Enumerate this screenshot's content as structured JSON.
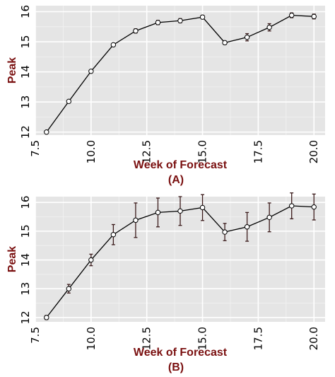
{
  "style": {
    "panel_background": "#e5e5e5",
    "grid_major": "#ffffff",
    "grid_minor": "#f2f2f2",
    "line_color": "#000000",
    "point_fill": "#ffffff",
    "errorbar_color": "#3a1a1a",
    "label_color": "#7a1010"
  },
  "chart_data": [
    {
      "type": "line",
      "panel_label": "(A)",
      "xlabel": "Week of Forecast",
      "ylabel": "Peak",
      "xlim": [
        7.5,
        20.5
      ],
      "ylim": [
        11.9,
        16.2
      ],
      "grid": true,
      "x_ticks": [
        "7.5",
        "10.0",
        "12.5",
        "15.0",
        "17.5",
        "20.0"
      ],
      "y_ticks": [
        "12",
        "13",
        "14",
        "15",
        "16"
      ],
      "series": [
        {
          "x": [
            8,
            9,
            10,
            11,
            12,
            13,
            14,
            15,
            16,
            17,
            18,
            19,
            20
          ],
          "values": [
            12.0,
            13.02,
            14.02,
            14.9,
            15.36,
            15.64,
            15.7,
            15.82,
            14.97,
            15.15,
            15.48,
            15.88,
            15.84
          ],
          "error_low": [
            0.02,
            0.03,
            0.03,
            0.05,
            0.07,
            0.07,
            0.07,
            0.06,
            0.06,
            0.12,
            0.12,
            0.08,
            0.08
          ],
          "error_high": [
            0.02,
            0.03,
            0.03,
            0.05,
            0.07,
            0.07,
            0.07,
            0.06,
            0.06,
            0.12,
            0.12,
            0.08,
            0.08
          ]
        }
      ]
    },
    {
      "type": "line",
      "panel_label": "(B)",
      "xlabel": "Week of Forecast",
      "ylabel": "Peak",
      "xlim": [
        7.5,
        20.5
      ],
      "ylim": [
        11.85,
        16.2
      ],
      "grid": true,
      "x_ticks": [
        "7.5",
        "10.0",
        "12.5",
        "15.0",
        "17.5",
        "20.0"
      ],
      "y_ticks": [
        "12",
        "13",
        "14",
        "15",
        "16"
      ],
      "series": [
        {
          "x": [
            8,
            9,
            10,
            11,
            12,
            13,
            14,
            15,
            16,
            17,
            18,
            19,
            20
          ],
          "values": [
            12.0,
            13.0,
            14.0,
            14.88,
            15.38,
            15.65,
            15.7,
            15.82,
            14.97,
            15.15,
            15.48,
            15.88,
            15.84
          ],
          "error_low": [
            0.07,
            0.15,
            0.2,
            0.35,
            0.6,
            0.5,
            0.5,
            0.45,
            0.3,
            0.5,
            0.5,
            0.45,
            0.45
          ],
          "error_high": [
            0.07,
            0.15,
            0.2,
            0.35,
            0.6,
            0.5,
            0.5,
            0.45,
            0.3,
            0.5,
            0.5,
            0.45,
            0.45
          ]
        }
      ]
    }
  ]
}
